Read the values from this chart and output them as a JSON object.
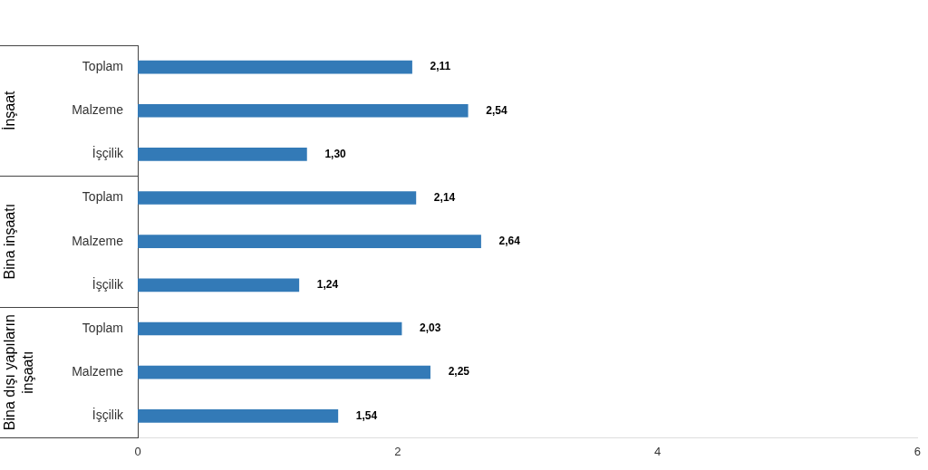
{
  "chart_data": {
    "type": "bar",
    "orientation": "horizontal",
    "categories": [
      "Toplam",
      "Malzeme",
      "İşçilik",
      "Toplam",
      "Malzeme",
      "İşçilik",
      "Toplam",
      "Malzeme",
      "İşçilik"
    ],
    "values": [
      2.11,
      2.54,
      1.3,
      2.14,
      2.64,
      1.24,
      2.03,
      2.25,
      1.54
    ],
    "value_labels": [
      "2,11",
      "2,54",
      "1,30",
      "2,14",
      "2,64",
      "1,24",
      "2,03",
      "2,25",
      "1,54"
    ],
    "color": "#337ab7",
    "xlim": [
      0,
      6
    ],
    "xticks": [
      0,
      2,
      4,
      6
    ],
    "grid": false,
    "legend": false,
    "annotations": [
      "İnşaat",
      "Bina inşaatı",
      "Bina dışı yapıların inşaatı"
    ]
  }
}
